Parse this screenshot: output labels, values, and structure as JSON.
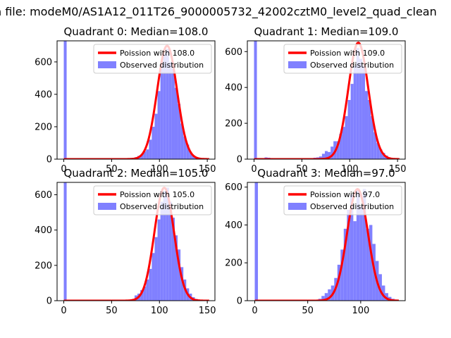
{
  "figure": {
    "suptitle": "n file: modeM0/AS1A12_011T26_9000005732_42002cztM0_level2_quad_clean"
  },
  "colors": {
    "hist": "#8080ff",
    "curve": "#ff0000",
    "axis": "#000000",
    "background": "#ffffff"
  },
  "chart_data": [
    {
      "type": "bar",
      "title": "Quadrant 0: Median=108.0",
      "xlim": [
        -7,
        158
      ],
      "ylim": [
        0,
        730
      ],
      "xticks": [
        0,
        50,
        100,
        150
      ],
      "yticks": [
        0,
        200,
        400,
        600
      ],
      "legend_position": "upper right",
      "series": [
        {
          "name": "Poission with 108.0",
          "kind": "line",
          "mean": 108,
          "peak": 700
        },
        {
          "name": "Observed distribution",
          "kind": "histogram",
          "bins": [
            [
              0,
              730
            ],
            [
              68,
              5
            ],
            [
              71,
              8
            ],
            [
              74,
              12
            ],
            [
              77,
              20
            ],
            [
              80,
              28
            ],
            [
              83,
              48
            ],
            [
              86,
              60
            ],
            [
              89,
              120
            ],
            [
              92,
              200
            ],
            [
              95,
              280
            ],
            [
              98,
              420
            ],
            [
              101,
              600
            ],
            [
              104,
              650
            ],
            [
              107,
              680
            ],
            [
              110,
              600
            ],
            [
              113,
              560
            ],
            [
              116,
              440
            ],
            [
              119,
              340
            ],
            [
              122,
              220
            ],
            [
              125,
              140
            ],
            [
              128,
              90
            ],
            [
              131,
              45
            ],
            [
              134,
              22
            ],
            [
              137,
              10
            ],
            [
              140,
              5
            ],
            [
              143,
              2
            ]
          ]
        }
      ]
    },
    {
      "type": "bar",
      "title": "Quadrant 1: Median=109.0",
      "xlim": [
        -7,
        158
      ],
      "ylim": [
        0,
        660
      ],
      "xticks": [
        0,
        50,
        100,
        150
      ],
      "yticks": [
        0,
        200,
        400,
        600
      ],
      "legend_position": "upper right",
      "series": [
        {
          "name": "Poission with 109.0",
          "kind": "line",
          "mean": 109,
          "peak": 650
        },
        {
          "name": "Observed distribution",
          "kind": "histogram",
          "bins": [
            [
              0,
              660
            ],
            [
              11,
              10
            ],
            [
              14,
              8
            ],
            [
              17,
              6
            ],
            [
              62,
              8
            ],
            [
              65,
              10
            ],
            [
              68,
              15
            ],
            [
              71,
              30
            ],
            [
              74,
              45
            ],
            [
              77,
              40
            ],
            [
              80,
              70
            ],
            [
              83,
              100
            ],
            [
              86,
              100
            ],
            [
              89,
              140
            ],
            [
              92,
              180
            ],
            [
              95,
              240
            ],
            [
              98,
              330
            ],
            [
              101,
              420
            ],
            [
              104,
              520
            ],
            [
              107,
              620
            ],
            [
              110,
              560
            ],
            [
              113,
              520
            ],
            [
              116,
              380
            ],
            [
              119,
              330
            ],
            [
              122,
              240
            ],
            [
              125,
              150
            ],
            [
              128,
              90
            ],
            [
              131,
              55
            ],
            [
              134,
              35
            ],
            [
              137,
              20
            ],
            [
              140,
              10
            ],
            [
              143,
              5
            ]
          ]
        }
      ]
    },
    {
      "type": "bar",
      "title": "Quadrant 2: Median=105.0",
      "xlim": [
        -7,
        158
      ],
      "ylim": [
        0,
        670
      ],
      "xticks": [
        0,
        50,
        100,
        150
      ],
      "yticks": [
        0,
        200,
        400,
        600
      ],
      "legend_position": "upper right",
      "series": [
        {
          "name": "Poission with 105.0",
          "kind": "line",
          "mean": 105,
          "peak": 640
        },
        {
          "name": "Observed distribution",
          "kind": "histogram",
          "bins": [
            [
              0,
              670
            ],
            [
              68,
              5
            ],
            [
              71,
              10
            ],
            [
              74,
              30
            ],
            [
              77,
              40
            ],
            [
              80,
              60
            ],
            [
              83,
              80
            ],
            [
              86,
              120
            ],
            [
              89,
              180
            ],
            [
              92,
              270
            ],
            [
              95,
              360
            ],
            [
              98,
              460
            ],
            [
              101,
              560
            ],
            [
              104,
              620
            ],
            [
              107,
              640
            ],
            [
              110,
              560
            ],
            [
              113,
              470
            ],
            [
              116,
              370
            ],
            [
              119,
              290
            ],
            [
              122,
              190
            ],
            [
              125,
              120
            ],
            [
              128,
              70
            ],
            [
              131,
              40
            ],
            [
              134,
              20
            ],
            [
              137,
              10
            ],
            [
              140,
              5
            ]
          ]
        }
      ]
    },
    {
      "type": "bar",
      "title": "Quadrant 3: Median=97.0",
      "xlim": [
        -7,
        142
      ],
      "ylim": [
        0,
        625
      ],
      "xticks": [
        0,
        50,
        100
      ],
      "yticks": [
        0,
        200,
        400,
        600
      ],
      "legend_position": "upper right",
      "series": [
        {
          "name": "Poission with 97.0",
          "kind": "line",
          "mean": 97,
          "peak": 590
        },
        {
          "name": "Observed distribution",
          "kind": "histogram",
          "bins": [
            [
              0,
              625
            ],
            [
              57,
              5
            ],
            [
              60,
              10
            ],
            [
              63,
              25
            ],
            [
              66,
              40
            ],
            [
              69,
              60
            ],
            [
              72,
              80
            ],
            [
              75,
              120
            ],
            [
              78,
              190
            ],
            [
              81,
              270
            ],
            [
              84,
              380
            ],
            [
              87,
              480
            ],
            [
              90,
              560
            ],
            [
              93,
              420
            ],
            [
              96,
              590
            ],
            [
              99,
              500
            ],
            [
              102,
              590
            ],
            [
              105,
              380
            ],
            [
              108,
              400
            ],
            [
              111,
              300
            ],
            [
              114,
              210
            ],
            [
              117,
              140
            ],
            [
              120,
              80
            ],
            [
              123,
              40
            ],
            [
              126,
              20
            ],
            [
              129,
              10
            ],
            [
              132,
              4
            ]
          ]
        }
      ]
    }
  ]
}
